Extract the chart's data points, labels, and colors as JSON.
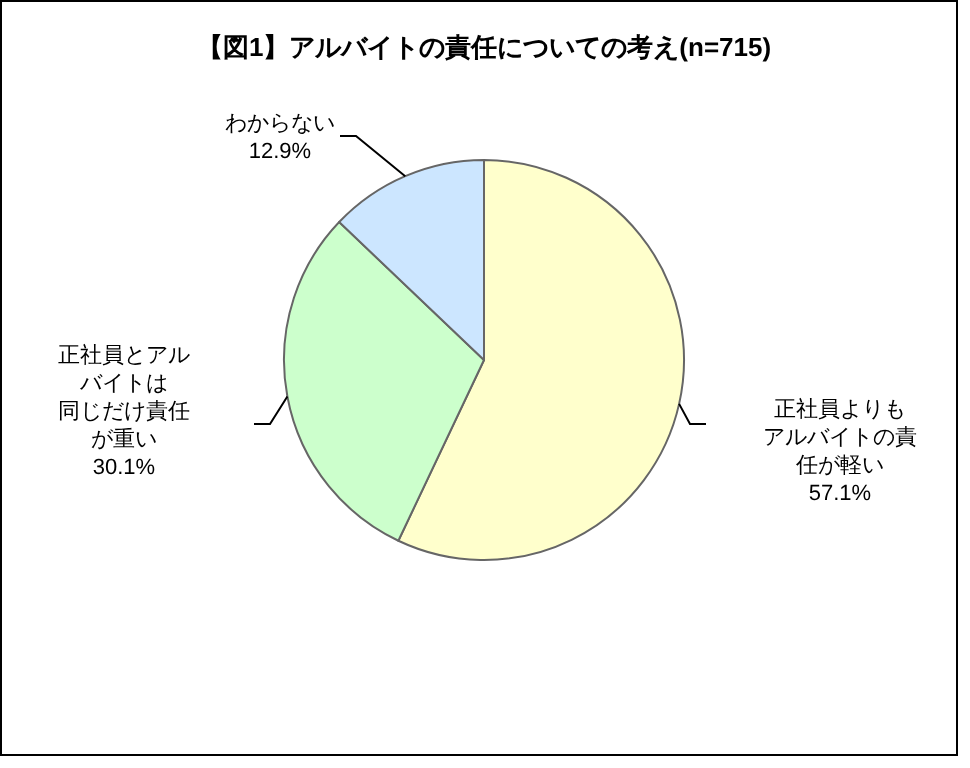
{
  "chart_data": {
    "type": "pie",
    "title": "【図1】アルバイトの責任についての考え(n=715)",
    "categories": [
      "正社員よりもアルバイトの責任が軽い",
      "正社員とアルバイトは同じだけ責任が重い",
      "わからない"
    ],
    "values": [
      57.1,
      30.1,
      12.9
    ],
    "colors": [
      "#ffffcc",
      "#ccffcc",
      "#cce6ff"
    ],
    "value_labels": [
      "57.1%",
      "30.1%",
      "12.9%"
    ],
    "legend": false
  }
}
